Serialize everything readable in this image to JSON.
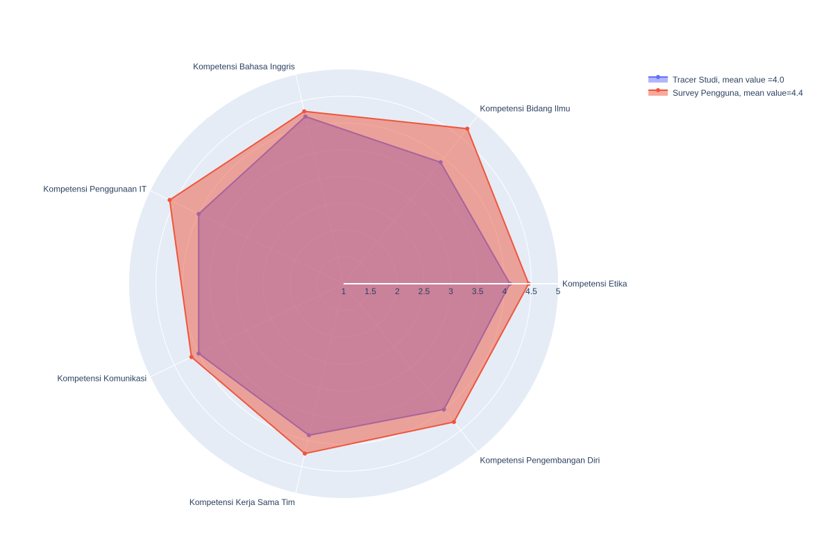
{
  "chart_data": {
    "type": "radar",
    "categories": [
      "Kompetensi Etika",
      "Kompetensi Bidang Ilmu",
      "Kompetensi Bahasa Inggris",
      "Kompetensi Penggunaan IT",
      "Kompetensi Komunikasi",
      "Kompetensi Kerja Sama Tim",
      "Kompetensi Pengembangan Diri"
    ],
    "series": [
      {
        "name": "Tracer Studi, mean value =4.0",
        "values": [
          4.1,
          3.9,
          4.2,
          4.0,
          4.0,
          3.9,
          4.0
        ],
        "color": "#636efa"
      },
      {
        "name": "Survey Pengguna, mean value=4.4",
        "values": [
          4.45,
          4.7,
          4.3,
          4.6,
          4.15,
          4.25,
          4.3
        ],
        "color": "#ef553b"
      }
    ],
    "radial_range": [
      1,
      5
    ],
    "radial_ticks": [
      "1",
      "1.5",
      "2",
      "2.5",
      "3",
      "3.5",
      "4",
      "4.5",
      "5"
    ],
    "legend_position": "top-right",
    "grid": true,
    "background_color": "#e5ecf6",
    "title": ""
  }
}
